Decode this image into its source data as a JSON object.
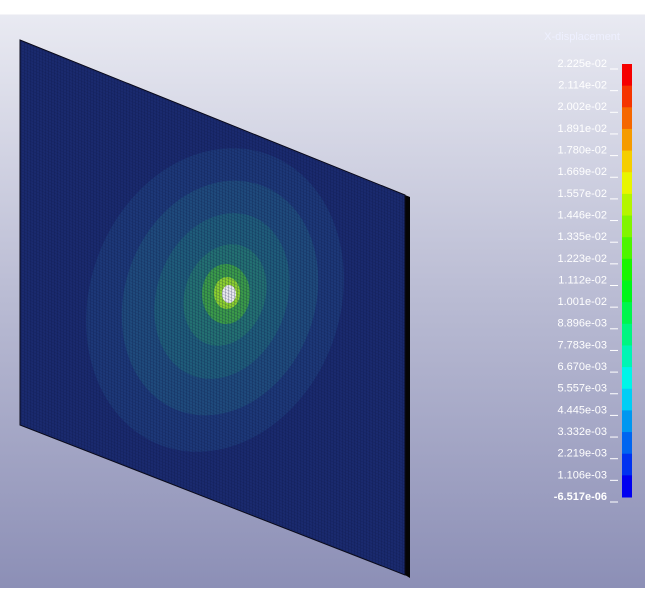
{
  "legend": {
    "title": "X-displacement",
    "labels": [
      "2.225e-02",
      "2.114e-02",
      "2.002e-02",
      "1.891e-02",
      "1.780e-02",
      "1.669e-02",
      "1.557e-02",
      "1.446e-02",
      "1.335e-02",
      "1.223e-02",
      "1.112e-02",
      "1.001e-02",
      "8.896e-03",
      "7.783e-03",
      "6.670e-03",
      "5.557e-03",
      "4.445e-03",
      "3.332e-03",
      "2.219e-03",
      "1.106e-03",
      "-6.517e-06"
    ]
  }
}
